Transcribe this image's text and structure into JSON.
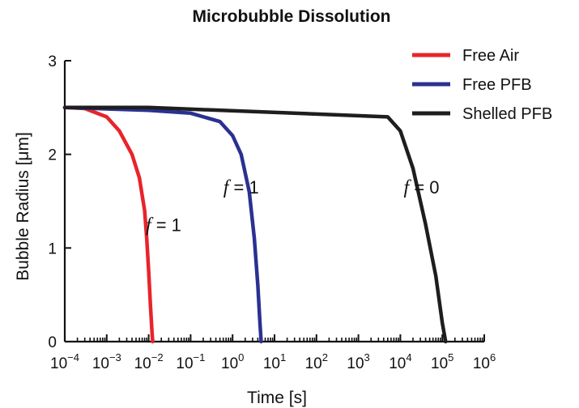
{
  "chart_data": {
    "type": "line",
    "title": "Microbubble Dissolution",
    "xlabel": "Time [s]",
    "ylabel": "Bubble Radius [μm]",
    "x_scale": "log",
    "xlim": [
      0.0001,
      1000000
    ],
    "ylim": [
      0,
      3
    ],
    "grid": false,
    "legend_position": "top-right",
    "x_tick_exponents": [
      -4,
      -3,
      -2,
      -1,
      0,
      1,
      2,
      3,
      4,
      5,
      6
    ],
    "y_ticks": [
      0,
      1,
      2,
      3
    ],
    "series": [
      {
        "name": "Free Air",
        "color": "#e8242b",
        "points": [
          [
            0.0001,
            2.5
          ],
          [
            0.0003,
            2.49
          ],
          [
            0.001,
            2.4
          ],
          [
            0.002,
            2.25
          ],
          [
            0.004,
            2.0
          ],
          [
            0.006,
            1.75
          ],
          [
            0.008,
            1.4
          ],
          [
            0.009,
            1.1
          ],
          [
            0.01,
            0.75
          ],
          [
            0.011,
            0.4
          ],
          [
            0.012,
            0.1
          ],
          [
            0.0125,
            0.0
          ]
        ]
      },
      {
        "name": "Free PFB",
        "color": "#2b3191",
        "points": [
          [
            0.0001,
            2.5
          ],
          [
            0.01,
            2.47
          ],
          [
            0.1,
            2.44
          ],
          [
            0.5,
            2.35
          ],
          [
            1.0,
            2.2
          ],
          [
            1.6,
            2.0
          ],
          [
            2.5,
            1.6
          ],
          [
            3.3,
            1.1
          ],
          [
            4.0,
            0.6
          ],
          [
            4.5,
            0.2
          ],
          [
            4.8,
            0.0
          ]
        ]
      },
      {
        "name": "Shelled PFB",
        "color": "#1e1e1e",
        "points": [
          [
            0.0001,
            2.5
          ],
          [
            0.01,
            2.5
          ],
          [
            100,
            2.43
          ],
          [
            5000,
            2.4
          ],
          [
            10000,
            2.25
          ],
          [
            20000,
            1.85
          ],
          [
            40000,
            1.25
          ],
          [
            70000,
            0.7
          ],
          [
            100000,
            0.2
          ],
          [
            120000,
            0.0
          ]
        ]
      }
    ],
    "annotations": [
      {
        "lhs": "f",
        "text": " = 1",
        "x": 0.0085,
        "y": 1.25
      },
      {
        "lhs": "f",
        "text": " = 1",
        "x": 0.6,
        "y": 1.65
      },
      {
        "lhs": "f",
        "text": " = 0",
        "x": 12000,
        "y": 1.65
      }
    ]
  }
}
